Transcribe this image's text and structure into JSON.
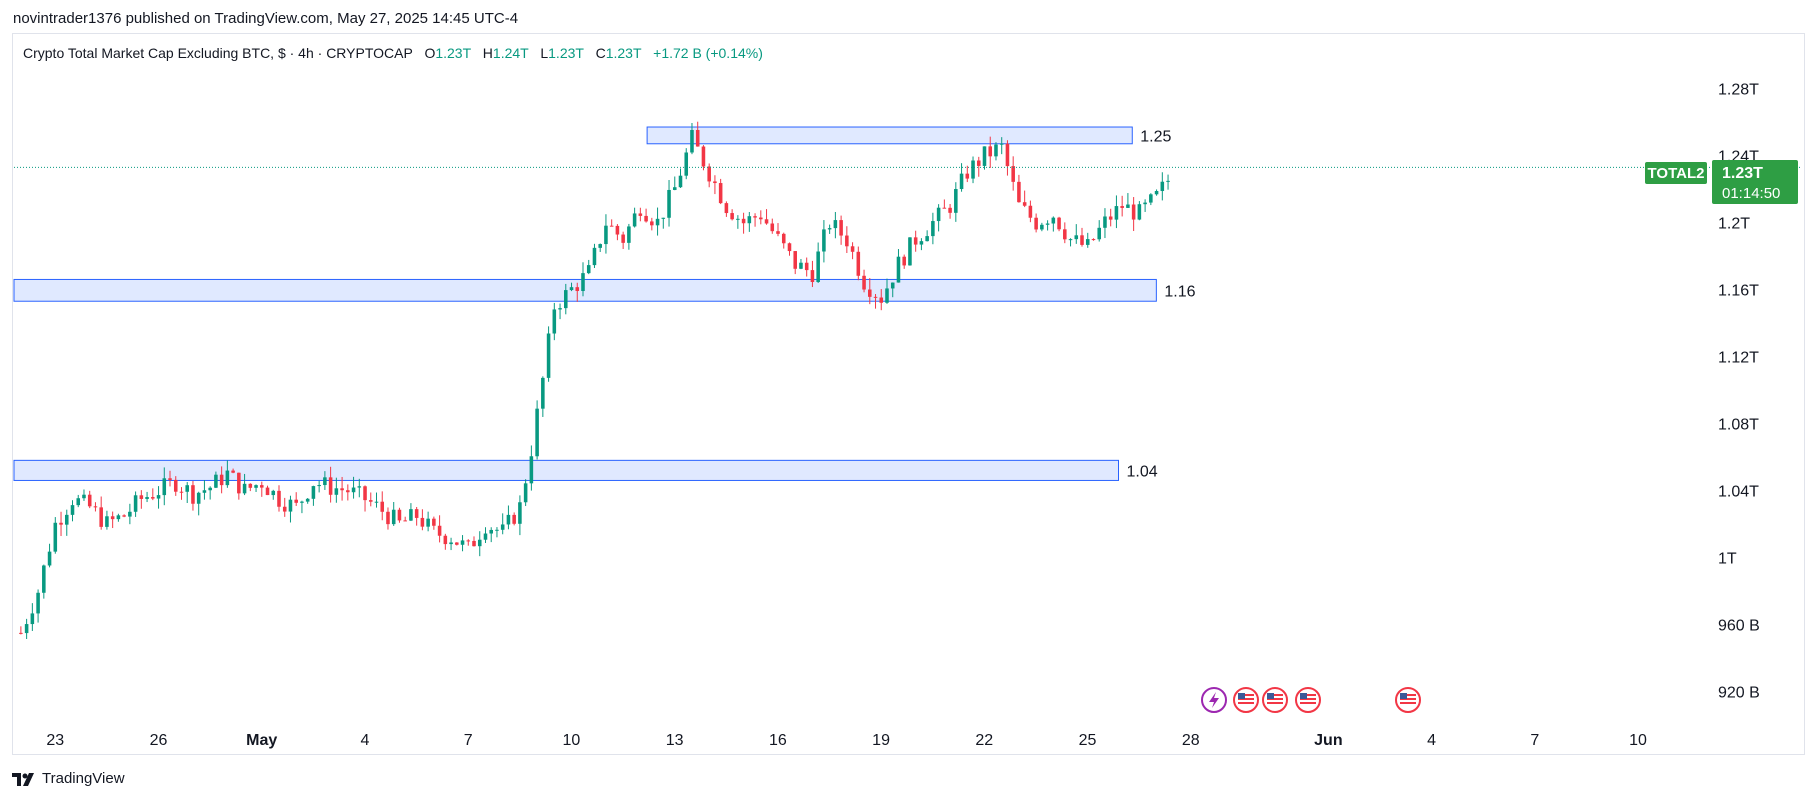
{
  "header": {
    "publish_line": "novintrader1376 published on TradingView.com, May 27, 2025 14:45 UTC-4"
  },
  "legend": {
    "symbol_title": "Crypto Total Market Cap Excluding BTC, $ · 4h · CRYPTOCAP",
    "open_label": "O",
    "open_value": "1.23T",
    "high_label": "H",
    "high_value": "1.24T",
    "low_label": "L",
    "low_value": "1.23T",
    "close_label": "C",
    "close_value": "1.23T",
    "change": "+1.72 B (+0.14%)"
  },
  "price_tag": {
    "symbol": "TOTAL2",
    "price": "1.23T",
    "countdown": "01:14:50"
  },
  "footer": {
    "brand": "TradingView"
  },
  "colors": {
    "up": "#089981",
    "down": "#f23645",
    "zone_fill": "#dbe5ff",
    "zone_border": "#2962ff",
    "price_tag": "#2e9e44"
  },
  "icons": [
    "lightning-event-icon",
    "us-flag-event-icon",
    "us-flag-event-icon",
    "us-flag-event-icon",
    "us-flag-event-icon"
  ],
  "chart_data": {
    "type": "candlestick",
    "timeframe": "4h",
    "y_unit": "T",
    "ylim": [
      0.9,
      1.3
    ],
    "y_ticks": [
      {
        "value": 0.92,
        "label": "920 B"
      },
      {
        "value": 0.96,
        "label": "960 B"
      },
      {
        "value": 1.0,
        "label": "1T"
      },
      {
        "value": 1.04,
        "label": "1.04T"
      },
      {
        "value": 1.08,
        "label": "1.08T"
      },
      {
        "value": 1.12,
        "label": "1.12T"
      },
      {
        "value": 1.16,
        "label": "1.16T"
      },
      {
        "value": 1.2,
        "label": "1.2T"
      },
      {
        "value": 1.24,
        "label": "1.24T"
      },
      {
        "value": 1.28,
        "label": "1.28T"
      }
    ],
    "x_ticks": [
      {
        "day": 23,
        "label": "23"
      },
      {
        "day": 26,
        "label": "26"
      },
      {
        "day": 29,
        "label": "May"
      },
      {
        "day": 32,
        "label": "4"
      },
      {
        "day": 35,
        "label": "7"
      },
      {
        "day": 38,
        "label": "10"
      },
      {
        "day": 41,
        "label": "13"
      },
      {
        "day": 44,
        "label": "16"
      },
      {
        "day": 47,
        "label": "19"
      },
      {
        "day": 50,
        "label": "22"
      },
      {
        "day": 53,
        "label": "25"
      },
      {
        "day": 56,
        "label": "28"
      },
      {
        "day": 60,
        "label": "Jun"
      },
      {
        "day": 63,
        "label": "4"
      },
      {
        "day": 66,
        "label": "7"
      },
      {
        "day": 69,
        "label": "10"
      }
    ],
    "x_range_days": [
      21.8,
      70.8
    ],
    "candle_start_day": 22.0,
    "candle_step_days": 0.1667,
    "close_path": [
      [
        22.0,
        0.955
      ],
      [
        22.5,
        0.98
      ],
      [
        23.0,
        1.02
      ],
      [
        23.5,
        1.035
      ],
      [
        24.0,
        1.03
      ],
      [
        24.5,
        1.02
      ],
      [
        25.0,
        1.025
      ],
      [
        25.5,
        1.035
      ],
      [
        26.0,
        1.04
      ],
      [
        26.5,
        1.045
      ],
      [
        27.0,
        1.038
      ],
      [
        27.5,
        1.042
      ],
      [
        28.0,
        1.05
      ],
      [
        28.5,
        1.04
      ],
      [
        29.0,
        1.045
      ],
      [
        29.5,
        1.035
      ],
      [
        30.0,
        1.03
      ],
      [
        30.5,
        1.045
      ],
      [
        31.0,
        1.042
      ],
      [
        31.5,
        1.04
      ],
      [
        32.0,
        1.035
      ],
      [
        32.5,
        1.028
      ],
      [
        33.0,
        1.02
      ],
      [
        33.5,
        1.025
      ],
      [
        34.0,
        1.015
      ],
      [
        34.5,
        1.012
      ],
      [
        35.0,
        1.005
      ],
      [
        35.5,
        1.02
      ],
      [
        36.0,
        1.015
      ],
      [
        36.5,
        1.03
      ],
      [
        36.8,
        1.06
      ],
      [
        37.2,
        1.11
      ],
      [
        37.5,
        1.15
      ],
      [
        38.0,
        1.16
      ],
      [
        38.5,
        1.17
      ],
      [
        39.0,
        1.2
      ],
      [
        39.5,
        1.19
      ],
      [
        40.0,
        1.21
      ],
      [
        40.5,
        1.2
      ],
      [
        41.0,
        1.22
      ],
      [
        41.5,
        1.25
      ],
      [
        42.0,
        1.23
      ],
      [
        42.5,
        1.21
      ],
      [
        43.0,
        1.2
      ],
      [
        43.5,
        1.205
      ],
      [
        44.0,
        1.19
      ],
      [
        44.5,
        1.175
      ],
      [
        45.0,
        1.17
      ],
      [
        45.5,
        1.2
      ],
      [
        46.0,
        1.19
      ],
      [
        46.5,
        1.165
      ],
      [
        47.0,
        1.155
      ],
      [
        47.5,
        1.175
      ],
      [
        48.0,
        1.19
      ],
      [
        48.5,
        1.2
      ],
      [
        49.0,
        1.21
      ],
      [
        49.5,
        1.23
      ],
      [
        50.0,
        1.24
      ],
      [
        50.5,
        1.245
      ],
      [
        51.0,
        1.21
      ],
      [
        51.5,
        1.2
      ],
      [
        52.0,
        1.205
      ],
      [
        52.5,
        1.19
      ],
      [
        53.0,
        1.185
      ],
      [
        53.5,
        1.2
      ],
      [
        54.0,
        1.21
      ],
      [
        54.5,
        1.205
      ],
      [
        55.0,
        1.215
      ],
      [
        55.5,
        1.23
      ]
    ],
    "zones": [
      {
        "label": "1.25",
        "top": 1.257,
        "bottom": 1.247,
        "from_day": 40.2,
        "to_day": 54.3
      },
      {
        "label": "1.16",
        "top": 1.166,
        "bottom": 1.153,
        "from_day": 21.8,
        "to_day": 55.0
      },
      {
        "label": "1.04",
        "top": 1.058,
        "bottom": 1.046,
        "from_day": 21.8,
        "to_day": 53.9
      }
    ],
    "last_price": 1.2329
  }
}
